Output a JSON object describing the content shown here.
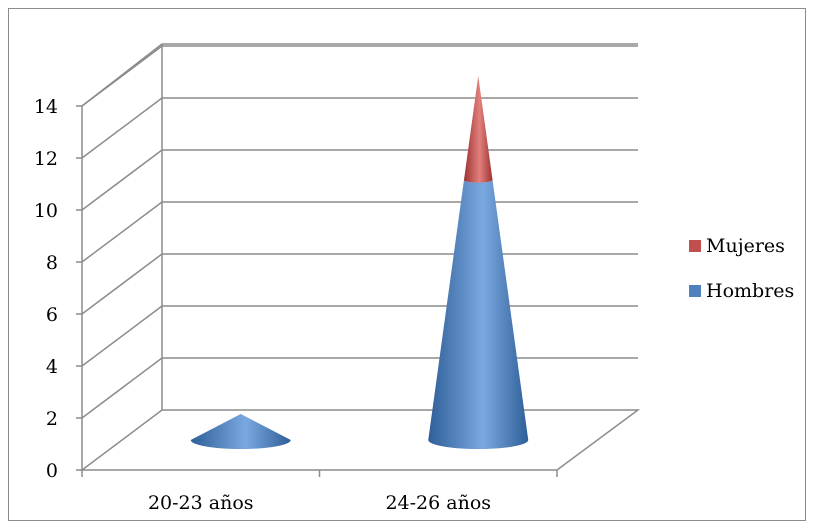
{
  "chart_data": {
    "type": "bar",
    "style": "3d-cone-stacked",
    "categories": [
      "20-23 años",
      "24-26 años"
    ],
    "series": [
      {
        "name": "Hombres",
        "values": [
          1,
          10
        ],
        "color": "#4f81bd"
      },
      {
        "name": "Mujeres",
        "values": [
          0,
          4
        ],
        "color": "#c0504d"
      }
    ],
    "ylim": [
      0,
      14
    ],
    "yticks": [
      "0",
      "2",
      "4",
      "6",
      "8",
      "10",
      "12",
      "14"
    ],
    "grid": true,
    "legend": "right"
  }
}
